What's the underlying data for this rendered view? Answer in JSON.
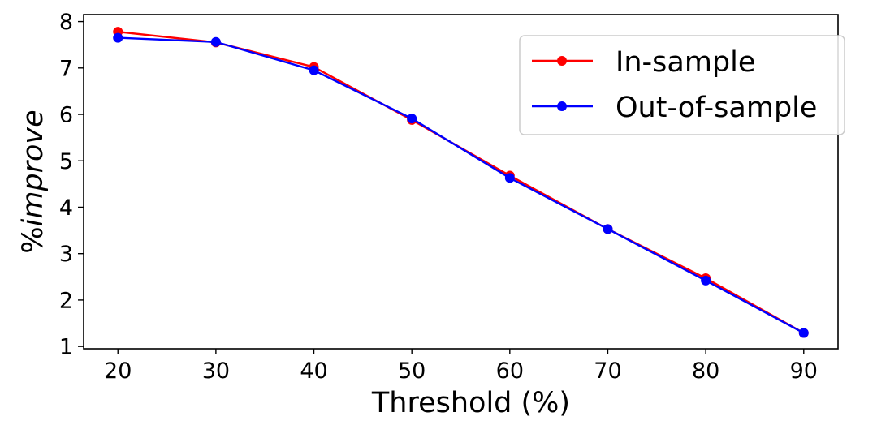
{
  "chart_data": {
    "type": "line",
    "title": "",
    "xlabel": "Threshold (%)",
    "ylabel_prefix": "%",
    "ylabel_italic": "improve",
    "x": [
      20,
      30,
      40,
      50,
      60,
      70,
      80,
      90
    ],
    "xticks": [
      "20",
      "30",
      "40",
      "50",
      "60",
      "70",
      "80",
      "90"
    ],
    "xlim": [
      16.5,
      93.5
    ],
    "yticks": [
      "1",
      "2",
      "3",
      "4",
      "5",
      "6",
      "7",
      "8"
    ],
    "yticks_values": [
      1,
      2,
      3,
      4,
      5,
      6,
      7,
      8
    ],
    "ylim": [
      0.95,
      8.15
    ],
    "grid": false,
    "legend_position": "top-right",
    "series": [
      {
        "name": "In-sample",
        "color": "#ff0000",
        "values": [
          7.78,
          7.55,
          7.02,
          5.88,
          4.68,
          3.53,
          2.47,
          1.29
        ]
      },
      {
        "name": "Out-of-sample",
        "color": "#0000ff",
        "values": [
          7.65,
          7.56,
          6.95,
          5.91,
          4.63,
          3.53,
          2.42,
          1.29
        ]
      }
    ]
  }
}
